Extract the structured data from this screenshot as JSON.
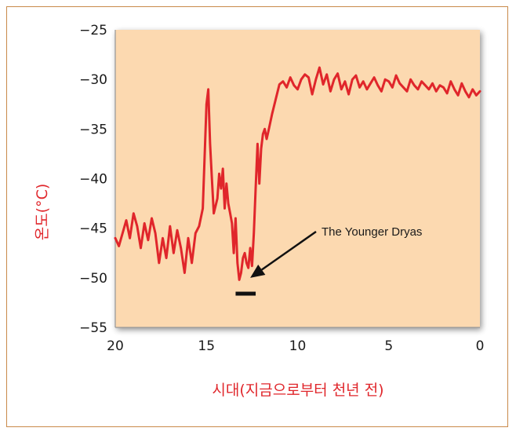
{
  "chart_data": {
    "type": "line",
    "xlabel": "시대(지금으로부터 천년 전)",
    "ylabel": "온도(°C)",
    "xlim": [
      20,
      0
    ],
    "ylim": [
      -55,
      -25
    ],
    "x_reversed": true,
    "xticks": [
      20,
      15,
      10,
      5,
      0
    ],
    "xtick_labels": [
      "20",
      "15",
      "10",
      "5",
      "0"
    ],
    "yticks": [
      -25,
      -30,
      -35,
      -40,
      -45,
      -50,
      -55
    ],
    "ytick_labels": [
      "−25",
      "−30",
      "−35",
      "−40",
      "−45",
      "−50",
      "−55"
    ],
    "grid": false,
    "plot_background": "#fcd9b0",
    "series": [
      {
        "color": "#e0262b",
        "x": [
          20.0,
          19.8,
          19.6,
          19.4,
          19.2,
          19.0,
          18.8,
          18.6,
          18.4,
          18.2,
          18.0,
          17.8,
          17.6,
          17.4,
          17.2,
          17.0,
          16.8,
          16.6,
          16.4,
          16.2,
          16.0,
          15.8,
          15.6,
          15.4,
          15.2,
          15.0,
          14.9,
          14.8,
          14.7,
          14.6,
          14.4,
          14.3,
          14.2,
          14.1,
          14.0,
          13.9,
          13.8,
          13.7,
          13.6,
          13.5,
          13.4,
          13.3,
          13.2,
          13.1,
          13.0,
          12.9,
          12.8,
          12.7,
          12.6,
          12.5,
          12.4,
          12.3,
          12.2,
          12.1,
          12.0,
          11.9,
          11.8,
          11.7,
          11.6,
          11.4,
          11.2,
          11.0,
          10.8,
          10.6,
          10.4,
          10.2,
          10.0,
          9.8,
          9.6,
          9.4,
          9.2,
          9.0,
          8.8,
          8.6,
          8.4,
          8.2,
          8.0,
          7.8,
          7.6,
          7.4,
          7.2,
          7.0,
          6.8,
          6.6,
          6.4,
          6.2,
          6.0,
          5.8,
          5.6,
          5.4,
          5.2,
          5.0,
          4.8,
          4.6,
          4.4,
          4.2,
          4.0,
          3.8,
          3.6,
          3.4,
          3.2,
          3.0,
          2.8,
          2.6,
          2.4,
          2.2,
          2.0,
          1.8,
          1.6,
          1.4,
          1.2,
          1.0,
          0.8,
          0.6,
          0.4,
          0.2,
          0.0
        ],
        "y": [
          -46.0,
          -46.8,
          -45.5,
          -44.2,
          -46.0,
          -43.5,
          -44.8,
          -47.0,
          -44.5,
          -46.2,
          -44.0,
          -45.5,
          -48.5,
          -46.0,
          -48.0,
          -44.8,
          -47.5,
          -45.2,
          -47.0,
          -49.5,
          -46.0,
          -48.5,
          -45.5,
          -44.8,
          -43.0,
          -32.5,
          -31.0,
          -36.5,
          -40.0,
          -43.5,
          -42.0,
          -39.5,
          -41.0,
          -39.0,
          -43.0,
          -40.5,
          -42.5,
          -43.5,
          -44.5,
          -47.5,
          -44.0,
          -48.5,
          -50.2,
          -49.5,
          -48.0,
          -47.5,
          -48.5,
          -49.0,
          -47.0,
          -48.8,
          -45.5,
          -41.0,
          -36.5,
          -40.5,
          -37.0,
          -35.5,
          -35.0,
          -36.0,
          -35.2,
          -33.5,
          -32.0,
          -30.5,
          -30.2,
          -30.8,
          -29.8,
          -30.6,
          -31.0,
          -30.0,
          -29.5,
          -29.8,
          -31.5,
          -30.0,
          -28.8,
          -30.5,
          -29.5,
          -31.2,
          -30.0,
          -29.4,
          -31.0,
          -30.2,
          -31.5,
          -30.0,
          -29.6,
          -30.8,
          -30.2,
          -31.0,
          -30.4,
          -29.8,
          -30.6,
          -31.2,
          -30.0,
          -30.2,
          -30.8,
          -29.6,
          -30.4,
          -30.8,
          -31.2,
          -30.0,
          -30.6,
          -31.0,
          -30.2,
          -30.6,
          -31.0,
          -30.4,
          -31.2,
          -30.6,
          -30.8,
          -31.4,
          -30.2,
          -31.0,
          -31.6,
          -30.4,
          -31.2,
          -31.8,
          -31.0,
          -31.6,
          -31.2
        ]
      }
    ],
    "annotations": [
      {
        "text": "The Younger Dryas",
        "arrow_to": [
          12.6,
          -50.0
        ]
      },
      {
        "type": "span_bar",
        "x_from": 13.4,
        "x_to": 12.3,
        "y": -51.6,
        "color": "#111111"
      }
    ]
  }
}
